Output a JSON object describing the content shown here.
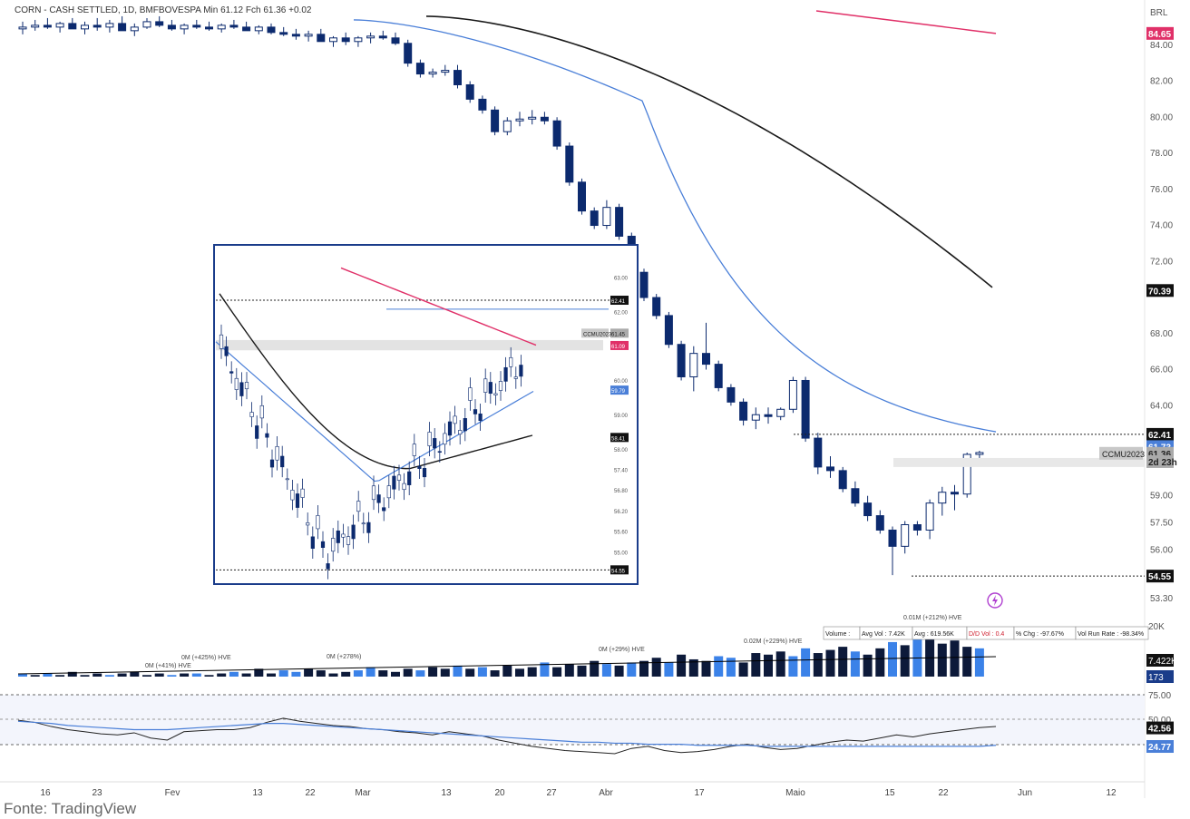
{
  "header": {
    "text": "CORN - CASH SETTLED, 1D, BMFBOVESPA  Min 61.12  Fch 61.36  +0.02"
  },
  "footer": {
    "source": "Fonte: TradingView"
  },
  "colors": {
    "bear": "#0c2a6e",
    "bull": "#ffffff",
    "ma_fast": "#4a7fd8",
    "ma_slow": "#1a1a1a",
    "ma_long": "#e03068",
    "vol_dark": "#0d1a3a",
    "vol_blue": "#3b82e8"
  },
  "chart_data": {
    "type": "candlestick",
    "main": {
      "currency": "BRL",
      "y_ticks": [
        "84.00",
        "82.00",
        "80.00",
        "78.00",
        "76.00",
        "74.00",
        "72.00",
        "68.00",
        "66.00",
        "64.00",
        "59.00",
        "57.50",
        "56.00",
        "53.30"
      ],
      "y_range": [
        53.3,
        86.0
      ],
      "x_labels": [
        "16",
        "23",
        "Fev",
        "13",
        "22",
        "Mar",
        "13",
        "20",
        "27",
        "Abr",
        "17",
        "Maio",
        "15",
        "22",
        "Jun",
        "12"
      ],
      "price_labels": [
        {
          "text": "84.65",
          "color": "#e03068",
          "value": 84.65
        },
        {
          "text": "70.39",
          "color": "#111111",
          "value": 70.39
        },
        {
          "text": "62.41",
          "color": "#111111",
          "value": 62.41
        },
        {
          "text": "61.73",
          "color": "#4a7fd8",
          "value": 61.73
        },
        {
          "text": "61.36",
          "color": "#aaaaaa",
          "value": 61.36
        },
        {
          "text": "2d 23h",
          "color": "#aaaaaa",
          "value": 60.9
        },
        {
          "text": "54.55",
          "color": "#111111",
          "value": 54.55
        }
      ],
      "symbol_tag": "CCMU2023",
      "candles": [
        [
          84.9,
          85.3,
          84.6,
          85.0
        ],
        [
          85.0,
          85.4,
          84.8,
          85.1
        ],
        [
          85.1,
          85.5,
          84.9,
          85.0
        ],
        [
          85.0,
          85.3,
          84.7,
          85.2
        ],
        [
          85.2,
          85.5,
          84.9,
          84.9
        ],
        [
          84.9,
          85.3,
          84.6,
          85.1
        ],
        [
          85.1,
          85.5,
          84.8,
          85.0
        ],
        [
          85.0,
          85.4,
          84.7,
          85.2
        ],
        [
          85.2,
          85.6,
          84.9,
          84.8
        ],
        [
          84.8,
          85.2,
          84.5,
          85.0
        ],
        [
          85.0,
          85.5,
          84.9,
          85.3
        ],
        [
          85.3,
          85.6,
          85.0,
          85.1
        ],
        [
          85.1,
          85.4,
          84.8,
          84.9
        ],
        [
          84.9,
          85.2,
          84.6,
          85.1
        ],
        [
          85.1,
          85.4,
          84.9,
          85.0
        ],
        [
          85.0,
          85.3,
          84.8,
          84.9
        ],
        [
          84.9,
          85.2,
          84.7,
          85.1
        ],
        [
          85.1,
          85.4,
          84.9,
          85.0
        ],
        [
          85.0,
          85.3,
          84.8,
          84.8
        ],
        [
          84.8,
          85.1,
          84.6,
          85.0
        ],
        [
          85.0,
          85.2,
          84.6,
          84.7
        ],
        [
          84.7,
          85.0,
          84.5,
          84.6
        ],
        [
          84.6,
          84.9,
          84.3,
          84.5
        ],
        [
          84.5,
          84.8,
          84.2,
          84.6
        ],
        [
          84.6,
          84.9,
          84.3,
          84.2
        ],
        [
          84.2,
          84.5,
          83.9,
          84.4
        ],
        [
          84.4,
          84.7,
          84.0,
          84.2
        ],
        [
          84.2,
          84.5,
          83.9,
          84.4
        ],
        [
          84.4,
          84.7,
          84.1,
          84.5
        ],
        [
          84.5,
          84.8,
          84.3,
          84.4
        ],
        [
          84.4,
          84.7,
          84.0,
          84.1
        ],
        [
          84.1,
          84.3,
          82.8,
          83.0
        ],
        [
          83.0,
          83.2,
          82.2,
          82.4
        ],
        [
          82.4,
          82.7,
          82.2,
          82.5
        ],
        [
          82.5,
          82.9,
          82.3,
          82.6
        ],
        [
          82.6,
          82.9,
          81.6,
          81.8
        ],
        [
          81.8,
          82.0,
          80.8,
          81.0
        ],
        [
          81.0,
          81.2,
          80.2,
          80.4
        ],
        [
          80.4,
          80.6,
          79.0,
          79.2
        ],
        [
          79.2,
          80.0,
          79.0,
          79.8
        ],
        [
          79.8,
          80.3,
          79.5,
          79.9
        ],
        [
          79.9,
          80.4,
          79.6,
          80.0
        ],
        [
          80.0,
          80.3,
          79.6,
          79.8
        ],
        [
          79.8,
          80.0,
          78.2,
          78.4
        ],
        [
          78.4,
          78.6,
          76.2,
          76.4
        ],
        [
          76.4,
          76.6,
          74.6,
          74.8
        ],
        [
          74.8,
          75.0,
          73.8,
          74.0
        ],
        [
          74.0,
          75.4,
          73.8,
          75.0
        ],
        [
          75.0,
          75.2,
          73.2,
          73.4
        ],
        [
          73.4,
          73.6,
          71.2,
          71.4
        ],
        [
          71.4,
          71.6,
          69.8,
          70.0
        ],
        [
          70.0,
          70.2,
          68.8,
          69.0
        ],
        [
          69.0,
          69.2,
          67.2,
          67.4
        ],
        [
          67.4,
          67.6,
          65.4,
          65.6
        ],
        [
          65.6,
          67.3,
          64.8,
          66.9
        ],
        [
          66.9,
          68.6,
          66.0,
          66.3
        ],
        [
          66.3,
          66.5,
          64.8,
          65.0
        ],
        [
          65.0,
          65.2,
          64.0,
          64.2
        ],
        [
          64.2,
          64.4,
          62.9,
          63.2
        ],
        [
          63.2,
          63.9,
          62.7,
          63.5
        ],
        [
          63.5,
          63.9,
          63.0,
          63.4
        ],
        [
          63.4,
          63.9,
          63.2,
          63.8
        ],
        [
          63.8,
          65.6,
          63.6,
          65.4
        ],
        [
          65.4,
          65.6,
          62.0,
          62.2
        ],
        [
          62.2,
          62.5,
          60.2,
          60.6
        ],
        [
          60.6,
          61.2,
          60.0,
          60.4
        ],
        [
          60.4,
          60.6,
          59.2,
          59.4
        ],
        [
          59.4,
          59.8,
          58.4,
          58.6
        ],
        [
          58.6,
          59.0,
          57.6,
          57.9
        ],
        [
          57.9,
          58.2,
          56.9,
          57.1
        ],
        [
          57.1,
          57.3,
          54.6,
          56.2
        ],
        [
          56.2,
          57.6,
          55.8,
          57.4
        ],
        [
          57.4,
          57.6,
          56.8,
          57.1
        ],
        [
          57.1,
          58.8,
          56.6,
          58.6
        ],
        [
          58.6,
          59.5,
          57.9,
          59.2
        ],
        [
          59.2,
          59.6,
          58.2,
          59.1
        ],
        [
          59.1,
          61.4,
          58.9,
          61.3
        ],
        [
          61.3,
          61.5,
          61.1,
          61.4
        ]
      ],
      "ma_fast_label": "61.73",
      "ma_slow_label": "70.39",
      "ma_long_label": "84.65"
    },
    "volume": {
      "labels": [
        "20K",
        "7.422K",
        "173"
      ],
      "annotations": [
        "0.01M (+212%) HVE",
        "0.02M (+229%) HVE",
        "0M (+425%) HVE",
        "0M (+29%) HVE",
        "0M (+278%)",
        "0M (+41%) HVE"
      ],
      "values": [
        2,
        1,
        2,
        1,
        3,
        1,
        2,
        1,
        2,
        3,
        1,
        2,
        1,
        2,
        2,
        1,
        2,
        3,
        2,
        5,
        2,
        4,
        3,
        5,
        4,
        2,
        3,
        4,
        6,
        4,
        3,
        5,
        4,
        6,
        5,
        7,
        5,
        6,
        4,
        7,
        5,
        6,
        9,
        6,
        8,
        7,
        10,
        8,
        7,
        9,
        10,
        12,
        9,
        14,
        11,
        10,
        13,
        12,
        9,
        15,
        14,
        16,
        13,
        18,
        15,
        17,
        19,
        16,
        14,
        18,
        22,
        20,
        26,
        24,
        21,
        23,
        19,
        18
      ],
      "info_table": [
        "Volume :",
        "Avg Vol : 7.42K",
        "Avg : 619.56K",
        "D/D Vol : 0.4",
        "% Chg : -97.67%",
        "Vol Run Rate : -98.34%"
      ]
    },
    "indicator": {
      "y_ticks": [
        "75.00",
        "50.00"
      ],
      "labels": [
        "42.56",
        "24.77"
      ],
      "line1": [
        49,
        47,
        43,
        40,
        38,
        36,
        35,
        37,
        32,
        30,
        38,
        39,
        40,
        40,
        42,
        47,
        51,
        48,
        46,
        44,
        43,
        41,
        40,
        38,
        37,
        35,
        38,
        36,
        34,
        30,
        27,
        24,
        22,
        20,
        19,
        18,
        17,
        22,
        24,
        20,
        18,
        19,
        21,
        24,
        26,
        23,
        21,
        22,
        25,
        28,
        30,
        29,
        32,
        35,
        33,
        36,
        38,
        40,
        42,
        43
      ],
      "line2": [
        48,
        47,
        46,
        44,
        43,
        42,
        41,
        40,
        40,
        40,
        41,
        42,
        43,
        44,
        45,
        46,
        46,
        45,
        44,
        43,
        42,
        41,
        40,
        39,
        38,
        37,
        36,
        35,
        34,
        33,
        32,
        31,
        30,
        29,
        28,
        28,
        27,
        27,
        26,
        26,
        26,
        25,
        25,
        25,
        25,
        24,
        24,
        24,
        24,
        24,
        24,
        24,
        24,
        24,
        24,
        24,
        24,
        24,
        24,
        25
      ]
    },
    "inset": {
      "y_ticks": [
        "63.00",
        "62.00",
        "60.00",
        "59.00",
        "58.00",
        "57.40",
        "56.80",
        "56.20",
        "55.60",
        "55.00"
      ],
      "labels": [
        {
          "text": "62.41",
          "color": "#111111"
        },
        {
          "text": "61.45",
          "color": "#aaaaaa"
        },
        {
          "text": "61.09",
          "color": "#e03068"
        },
        {
          "text": "59.79",
          "color": "#4a7fd8"
        },
        {
          "text": "58.41",
          "color": "#111111"
        },
        {
          "text": "54.55",
          "color": "#111111"
        }
      ],
      "symbol_tag": "CCMU2023"
    }
  }
}
